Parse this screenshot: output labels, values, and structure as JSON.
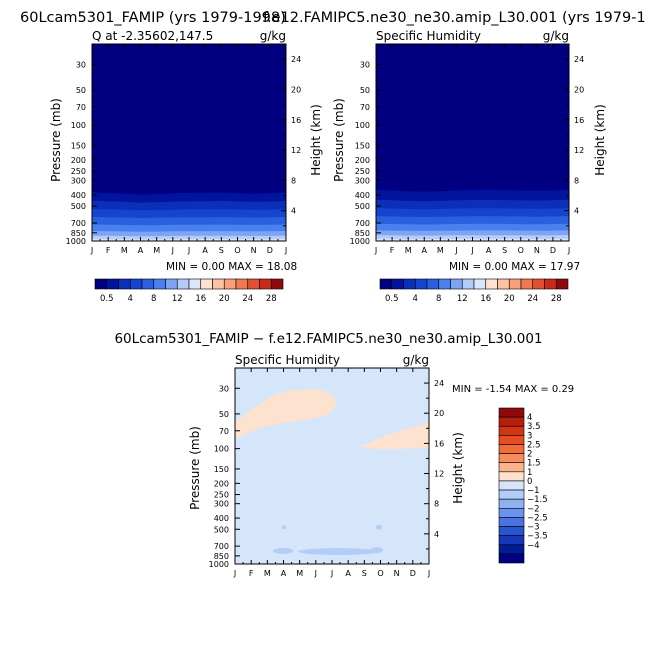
{
  "titles": {
    "left_run": "60Lcam5301_FAMIP (yrs 1979-1998)",
    "right_run": "f.e12.FAMIPC5.ne30_ne30.amip_L30.001 (yrs 1979-1",
    "diff": "60Lcam5301_FAMIP − f.e12.FAMIPC5.ne30_ne30.amip_L30.001"
  },
  "chart_data": [
    {
      "type": "heatmap",
      "title": "Q at -2.35602,147.5",
      "units": "g/kg",
      "xlabel": "",
      "ylabel": "Pressure (mb)",
      "ylabel_right": "Height (km)",
      "x_ticks": [
        "J",
        "F",
        "M",
        "A",
        "M",
        "J",
        "J",
        "A",
        "S",
        "O",
        "N",
        "D",
        "J"
      ],
      "y_ticks": [
        30,
        50,
        70,
        100,
        150,
        200,
        250,
        300,
        400,
        500,
        700,
        850,
        1000
      ],
      "y_ticks_right": [
        24,
        20,
        16,
        12,
        8,
        4
      ],
      "ylim": [
        1000,
        20
      ],
      "y_scale": "log",
      "stats": "MIN =    0.00 MAX =   18.08",
      "levels": [
        0.5,
        2,
        4,
        6,
        8,
        10,
        12,
        14,
        16,
        18,
        20,
        22,
        24,
        26,
        28
      ],
      "level_labels": [
        "0.5",
        "4",
        "8",
        "12",
        "16",
        "20",
        "24",
        "28"
      ],
      "palette": [
        "#000080",
        "#00149e",
        "#0b2fb8",
        "#1545cf",
        "#2a60e0",
        "#4a7ff0",
        "#7da4f5",
        "#b4ccf8",
        "#dbe6fb",
        "#fde2cf",
        "#fbc2a3",
        "#f7a07a",
        "#ef7a52",
        "#e2512f",
        "#c72a16",
        "#8e0a0a"
      ],
      "contour_pressures": [
        380,
        450,
        530,
        620,
        720,
        820,
        900,
        960
      ],
      "monthly_shift": [
        0,
        5,
        10,
        18,
        15,
        8,
        5,
        4,
        2,
        6,
        10,
        8,
        0
      ]
    },
    {
      "type": "heatmap",
      "title": "Specific Humidity",
      "units": "g/kg",
      "xlabel": "",
      "ylabel": "Pressure (mb)",
      "ylabel_right": "Height (km)",
      "x_ticks": [
        "J",
        "F",
        "M",
        "A",
        "M",
        "J",
        "J",
        "A",
        "S",
        "O",
        "N",
        "D",
        "J"
      ],
      "y_ticks": [
        30,
        50,
        70,
        100,
        150,
        200,
        250,
        300,
        400,
        500,
        700,
        850,
        1000
      ],
      "y_ticks_right": [
        24,
        20,
        16,
        12,
        8,
        4
      ],
      "ylim": [
        1000,
        20
      ],
      "y_scale": "log",
      "stats": "MIN =    0.00 MAX =   17.97",
      "levels": [
        0.5,
        2,
        4,
        6,
        8,
        10,
        12,
        14,
        16,
        18,
        20,
        22,
        24,
        26,
        28
      ],
      "level_labels": [
        "0.5",
        "4",
        "8",
        "12",
        "16",
        "20",
        "24",
        "28"
      ],
      "palette": [
        "#000080",
        "#00149e",
        "#0b2fb8",
        "#1545cf",
        "#2a60e0",
        "#4a7ff0",
        "#7da4f5",
        "#b4ccf8",
        "#dbe6fb",
        "#fde2cf",
        "#fbc2a3",
        "#f7a07a",
        "#ef7a52",
        "#e2512f",
        "#c72a16",
        "#8e0a0a"
      ],
      "contour_pressures": [
        360,
        440,
        520,
        610,
        710,
        810,
        890,
        955
      ],
      "monthly_shift": [
        0,
        6,
        12,
        15,
        12,
        6,
        3,
        2,
        4,
        7,
        9,
        6,
        0
      ]
    },
    {
      "type": "heatmap",
      "title": "Specific Humidity",
      "units": "g/kg",
      "xlabel": "",
      "ylabel": "Pressure (mb)",
      "ylabel_right": "Height (km)",
      "x_ticks": [
        "J",
        "F",
        "M",
        "A",
        "M",
        "J",
        "J",
        "A",
        "S",
        "O",
        "N",
        "D",
        "J"
      ],
      "y_ticks": [
        30,
        50,
        70,
        100,
        150,
        200,
        250,
        300,
        400,
        500,
        700,
        850,
        1000
      ],
      "y_ticks_right": [
        24,
        20,
        16,
        12,
        8,
        4
      ],
      "ylim": [
        1000,
        20
      ],
      "y_scale": "log",
      "stats": "MIN =   -1.54 MAX =    0.29",
      "levels": [
        -4,
        -3.5,
        -3,
        -2.5,
        -2,
        -1.5,
        -1,
        0,
        1,
        1.5,
        2,
        2.5,
        3,
        3.5,
        4
      ],
      "level_labels": [
        "4",
        "3.5",
        "3",
        "2.5",
        "2",
        "1.5",
        "1",
        "0",
        "−1",
        "−1.5",
        "−2",
        "−2.5",
        "−3",
        "−3.5",
        "−4"
      ],
      "palette": [
        "#8e0a0a",
        "#b61e0e",
        "#d23414",
        "#e64d22",
        "#f26c3a",
        "#f78c5c",
        "#fbb38c",
        "#fde2cf",
        "#d5e6fb",
        "#b4ccf8",
        "#8fb1f4",
        "#6b93ee",
        "#4a74e4",
        "#2a53d2",
        "#1536b8",
        "#001c96",
        "#000080"
      ],
      "background": "#d5e6fb",
      "positive_fill": "#fde2cf",
      "negative_fill": "#b4ccf8"
    }
  ]
}
